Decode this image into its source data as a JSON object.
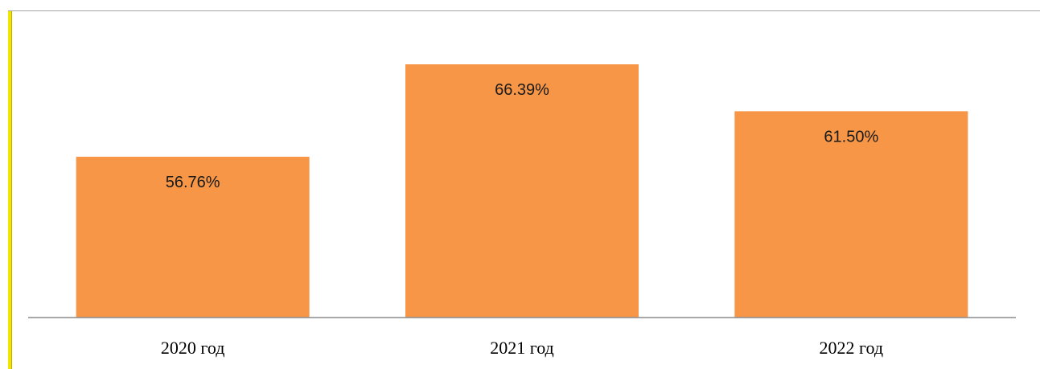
{
  "chart_data": {
    "type": "bar",
    "categories": [
      "2020 год",
      "2021 год",
      "2022 год"
    ],
    "values": [
      56.76,
      66.39,
      61.5
    ],
    "data_labels": [
      "56.76%",
      "66.39%",
      "61.50%"
    ],
    "title": "",
    "xlabel": "",
    "ylabel": "",
    "ylim": [
      40,
      68
    ],
    "grid": false,
    "legend": "none",
    "bar_color": "#f79646",
    "axis_color": "#8c8c8c"
  }
}
